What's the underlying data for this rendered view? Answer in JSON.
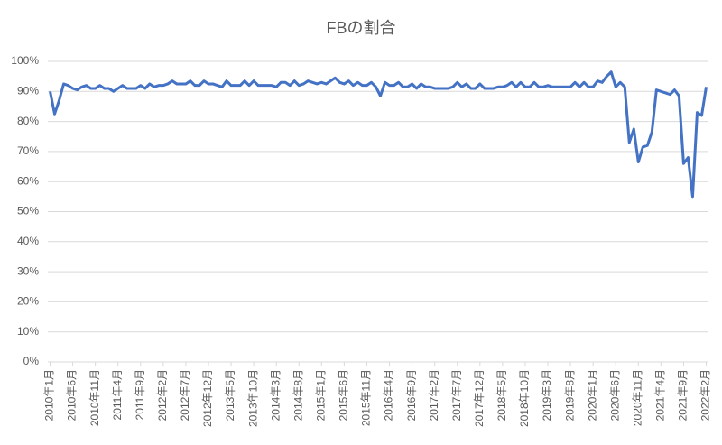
{
  "chart_data": {
    "type": "line",
    "title": "FBの割合",
    "categories": [
      "2010年1月",
      null,
      null,
      null,
      null,
      "2010年6月",
      null,
      null,
      null,
      null,
      "2010年11月",
      null,
      null,
      null,
      null,
      "2011年4月",
      null,
      null,
      null,
      null,
      "2011年9月",
      null,
      null,
      null,
      null,
      "2012年2月",
      null,
      null,
      null,
      null,
      "2012年7月",
      null,
      null,
      null,
      null,
      "2012年12月",
      null,
      null,
      null,
      null,
      "2013年5月",
      null,
      null,
      null,
      null,
      "2013年10月",
      null,
      null,
      null,
      null,
      "2014年3月",
      null,
      null,
      null,
      null,
      "2014年8月",
      null,
      null,
      null,
      null,
      "2015年1月",
      null,
      null,
      null,
      null,
      "2015年6月",
      null,
      null,
      null,
      null,
      "2015年11月",
      null,
      null,
      null,
      null,
      "2016年4月",
      null,
      null,
      null,
      null,
      "2016年9月",
      null,
      null,
      null,
      null,
      "2017年2月",
      null,
      null,
      null,
      null,
      "2017年7月",
      null,
      null,
      null,
      null,
      "2017年12月",
      null,
      null,
      null,
      null,
      "2018年5月",
      null,
      null,
      null,
      null,
      "2018年10月",
      null,
      null,
      null,
      null,
      "2019年3月",
      null,
      null,
      null,
      null,
      "2019年8月",
      null,
      null,
      null,
      null,
      "2020年1月",
      null,
      null,
      null,
      null,
      "2020年6月",
      null,
      null,
      null,
      null,
      "2020年11月",
      null,
      null,
      null,
      null,
      "2021年4月",
      null,
      null,
      null,
      null,
      "2021年9月",
      null,
      null,
      null,
      null,
      "2022年2月"
    ],
    "values": [
      90,
      82.5,
      87,
      92.5,
      92,
      91,
      90.5,
      91.5,
      92,
      91,
      91,
      92,
      91,
      91,
      90,
      91,
      92,
      91,
      91,
      91,
      92,
      91,
      92.5,
      91.5,
      92,
      92,
      92.5,
      93.5,
      92.5,
      92.5,
      92.5,
      93.5,
      92,
      92,
      93.5,
      92.5,
      92.5,
      92,
      91.5,
      93.5,
      92,
      92,
      92,
      93.5,
      92,
      93.5,
      92,
      92,
      92,
      92,
      91.5,
      93,
      93,
      92,
      93.5,
      92,
      92.5,
      93.5,
      93,
      92.5,
      93,
      92.5,
      93.5,
      94.5,
      93,
      92.5,
      93.5,
      92,
      93,
      92,
      92,
      93,
      91.5,
      88.5,
      93,
      92,
      92,
      93,
      91.5,
      91.5,
      92.5,
      91,
      92.5,
      91.5,
      91.5,
      91,
      91,
      91,
      91,
      91.5,
      93,
      91.5,
      92.5,
      91,
      91,
      92.5,
      91,
      91,
      91,
      91.5,
      91.5,
      92,
      93,
      91.5,
      93,
      91.5,
      91.5,
      93,
      91.5,
      91.5,
      92,
      91.5,
      91.5,
      91.5,
      91.5,
      91.5,
      93,
      91.5,
      93,
      91.5,
      91.5,
      93.5,
      93,
      95,
      96.5,
      91.5,
      93,
      91.5,
      73,
      77.5,
      66.5,
      71.5,
      72,
      76.5,
      90.5,
      90,
      89.5,
      89,
      90.5,
      88.5,
      66,
      68,
      55,
      83,
      82,
      91.5
    ],
    "color": "#4472c4",
    "ylim": [
      0,
      100
    ],
    "yticks": [
      {
        "value": 0,
        "label": "0%"
      },
      {
        "value": 10,
        "label": "10%"
      },
      {
        "value": 20,
        "label": "20%"
      },
      {
        "value": 30,
        "label": "30%"
      },
      {
        "value": 40,
        "label": "40%"
      },
      {
        "value": 50,
        "label": "50%"
      },
      {
        "value": 60,
        "label": "60%"
      },
      {
        "value": 70,
        "label": "70%"
      },
      {
        "value": 80,
        "label": "80%"
      },
      {
        "value": 90,
        "label": "90%"
      },
      {
        "value": 100,
        "label": "100%"
      }
    ],
    "grid": true
  }
}
